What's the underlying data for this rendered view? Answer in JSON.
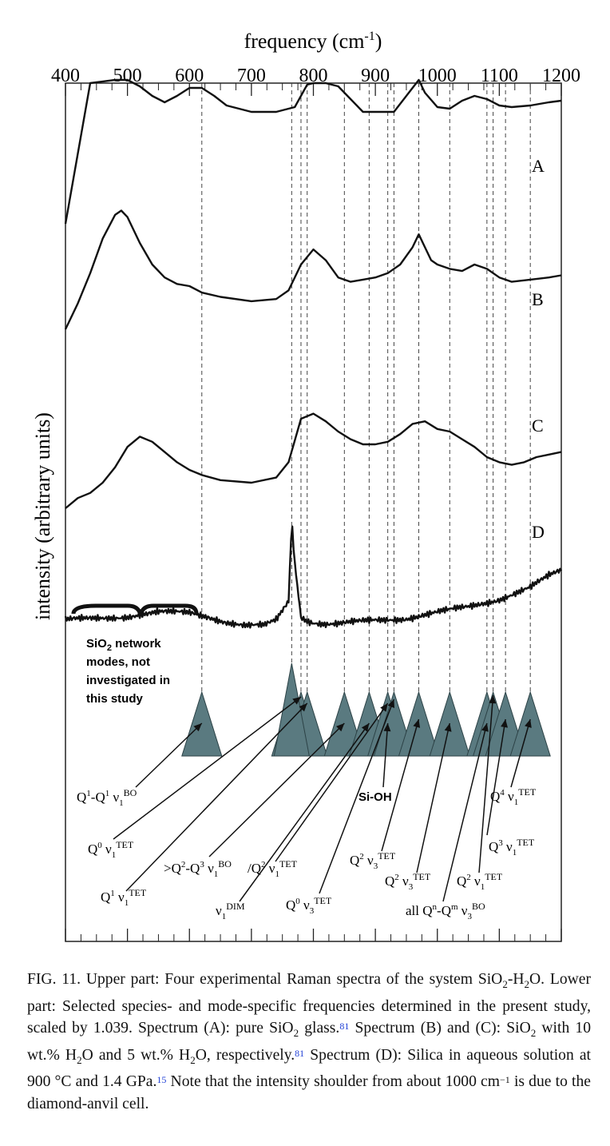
{
  "figure": {
    "x_axis_label": "frequency (cm",
    "x_axis_label_exp": "-1",
    "x_axis_label_close": ")",
    "y_axis_label": "intensity (arbitrary units)",
    "spectrum_labels": [
      "A",
      "B",
      "C",
      "D"
    ],
    "network_note": [
      "SiO",
      "2",
      " network",
      "modes, not",
      "investigated in",
      "this study"
    ]
  },
  "chart_data": {
    "type": "line",
    "xlabel": "frequency (cm-1)",
    "ylabel": "intensity (arbitrary units)",
    "xlim": [
      400,
      1200
    ],
    "x_ticks": [
      400,
      500,
      600,
      700,
      800,
      900,
      1000,
      1100,
      1200
    ],
    "series": [
      {
        "name": "A",
        "x": [
          400,
          440,
          480,
          500,
          520,
          540,
          560,
          580,
          600,
          620,
          640,
          660,
          700,
          740,
          770,
          790,
          800,
          820,
          840,
          860,
          880,
          900,
          930,
          960,
          970,
          980,
          1000,
          1020,
          1040,
          1060,
          1080,
          1100,
          1120,
          1150,
          1180,
          1200
        ],
        "values": [
          0.1,
          0.98,
          1.0,
          1.0,
          0.96,
          0.9,
          0.86,
          0.9,
          0.95,
          0.95,
          0.9,
          0.84,
          0.8,
          0.8,
          0.83,
          0.97,
          0.98,
          0.98,
          0.96,
          0.88,
          0.8,
          0.8,
          0.8,
          0.95,
          1.0,
          0.92,
          0.83,
          0.82,
          0.87,
          0.9,
          0.88,
          0.84,
          0.83,
          0.84,
          0.86,
          0.87
        ]
      },
      {
        "name": "B",
        "x": [
          400,
          420,
          440,
          460,
          480,
          490,
          500,
          520,
          540,
          560,
          580,
          600,
          620,
          650,
          700,
          740,
          760,
          780,
          800,
          820,
          840,
          860,
          880,
          900,
          920,
          940,
          960,
          970,
          980,
          990,
          1000,
          1020,
          1040,
          1060,
          1080,
          1100,
          1120,
          1150,
          1180,
          1200
        ],
        "values": [
          0.4,
          0.52,
          0.66,
          0.82,
          0.93,
          0.95,
          0.92,
          0.8,
          0.7,
          0.64,
          0.61,
          0.6,
          0.57,
          0.55,
          0.53,
          0.54,
          0.58,
          0.7,
          0.77,
          0.72,
          0.64,
          0.62,
          0.63,
          0.64,
          0.66,
          0.7,
          0.78,
          0.84,
          0.78,
          0.72,
          0.7,
          0.68,
          0.67,
          0.7,
          0.68,
          0.64,
          0.62,
          0.63,
          0.64,
          0.65
        ]
      },
      {
        "name": "C",
        "x": [
          400,
          420,
          440,
          460,
          480,
          500,
          520,
          540,
          560,
          580,
          600,
          620,
          650,
          700,
          740,
          760,
          780,
          800,
          820,
          840,
          860,
          880,
          900,
          920,
          940,
          960,
          980,
          1000,
          1020,
          1040,
          1060,
          1080,
          1100,
          1120,
          1140,
          1160,
          1180,
          1200
        ],
        "values": [
          0.2,
          0.24,
          0.26,
          0.3,
          0.36,
          0.44,
          0.48,
          0.46,
          0.42,
          0.38,
          0.35,
          0.33,
          0.31,
          0.3,
          0.32,
          0.38,
          0.55,
          0.57,
          0.54,
          0.5,
          0.47,
          0.45,
          0.45,
          0.46,
          0.49,
          0.53,
          0.54,
          0.51,
          0.5,
          0.47,
          0.44,
          0.4,
          0.38,
          0.37,
          0.38,
          0.4,
          0.41,
          0.42
        ]
      },
      {
        "name": "D",
        "x": [
          400,
          450,
          500,
          550,
          600,
          630,
          660,
          690,
          720,
          740,
          760,
          765,
          770,
          780,
          790,
          800,
          820,
          840,
          870,
          900,
          950,
          1000,
          1050,
          1100,
          1150,
          1180,
          1200
        ],
        "values": [
          0.1,
          0.11,
          0.12,
          0.14,
          0.14,
          0.12,
          0.09,
          0.07,
          0.07,
          0.1,
          0.2,
          0.62,
          0.4,
          0.12,
          0.1,
          0.09,
          0.08,
          0.08,
          0.09,
          0.1,
          0.11,
          0.14,
          0.17,
          0.21,
          0.27,
          0.33,
          0.36
        ]
      }
    ],
    "marker_frequencies_scaled": [
      620,
      765,
      780,
      790,
      850,
      890,
      920,
      930,
      970,
      1020,
      1080,
      1090,
      1110,
      1150
    ],
    "species_labels": [
      {
        "text": "Q1-Q1 v1 BO"
      },
      {
        "text": "Q0 v1 TET"
      },
      {
        "text": "Q1 v1 TET"
      },
      {
        "text": ">Q2-Q3 v1 BO"
      },
      {
        "text": "v1 DIM"
      },
      {
        "text": "Q2 v1 TET"
      },
      {
        "text": "Q0 v3 TET"
      },
      {
        "text": "Q2 v3 TET"
      },
      {
        "text": "Si-OH"
      },
      {
        "text": "Q2 v3 TET"
      },
      {
        "text": "all Qn-Qm v3 BO"
      },
      {
        "text": "Q2 v1 TET"
      },
      {
        "text": "Q3 v1 TET"
      },
      {
        "text": "Q4 v1 TET"
      }
    ]
  },
  "caption": {
    "fig": "FIG. 11.",
    "t1": " Upper part: Four experimental Raman spectra of the system SiO",
    "t1s": "2",
    "t2": "-H",
    "t2s": "2",
    "t3": "O. Lower part: Selected species- and mode-specific frequencies determined in the present study, scaled by 1.039. Spectrum (A): pure SiO",
    "t3s": "2",
    "t4": " glass.",
    "c1": "81",
    "t5": " Spectrum (B) and (C): SiO",
    "t5s": "2",
    "t6": " with 10 wt.% H",
    "t6s": "2",
    "t7": "O and 5 wt.% H",
    "t7s": "2",
    "t8": "O, respectively.",
    "c2": "81",
    "t9": " Spectrum (D): Silica in aqueous solution at 900 °C and 1.4 GPa.",
    "c3": "15",
    "t10": " Note that the intensity shoulder from about 1000 cm",
    "t10s": "−1",
    "t11": " is due to the diamond-anvil cell."
  },
  "colors": {
    "triangle": "#5a7a80",
    "line": "#111111",
    "cite": "#1f3fd6"
  }
}
